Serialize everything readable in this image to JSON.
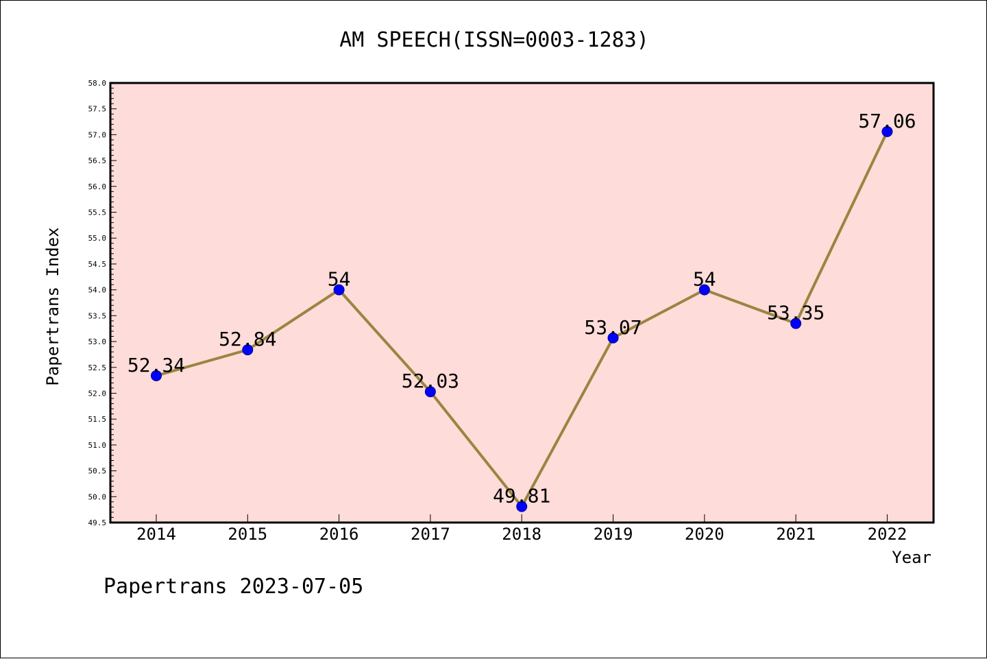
{
  "chart_data": {
    "type": "line",
    "title": "AM SPEECH(ISSN=0003-1283)",
    "xlabel": "Year",
    "ylabel": "Papertrans Index",
    "categories": [
      "2014",
      "2015",
      "2016",
      "2017",
      "2018",
      "2019",
      "2020",
      "2021",
      "2022"
    ],
    "values": [
      52.34,
      52.84,
      54,
      52.03,
      49.81,
      53.07,
      54,
      53.35,
      57.06
    ],
    "data_labels": [
      "52.34",
      "52.84",
      "54",
      "52.03",
      "49.81",
      "53.07",
      "54",
      "53.35",
      "57.06"
    ],
    "ylim": [
      49.5,
      58.0
    ],
    "y_ticks": [
      "49.5",
      "50.0",
      "50.5",
      "51.0",
      "51.5",
      "52.0",
      "52.5",
      "53.0",
      "53.5",
      "54.0",
      "54.5",
      "55.0",
      "55.5",
      "56.0",
      "56.5",
      "57.0",
      "57.5",
      "58.0"
    ],
    "grid": false,
    "legend": "none",
    "colors": {
      "plot_background": "#fddcd9",
      "line": "#9a8540",
      "marker": "#0000ff",
      "frame": "#000000"
    }
  },
  "footer": "Papertrans 2023-07-05"
}
